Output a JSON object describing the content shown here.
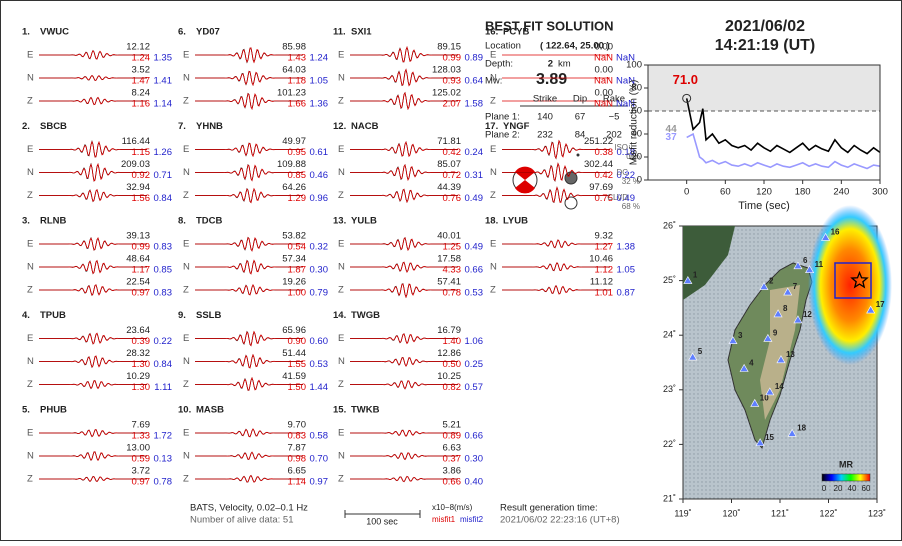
{
  "stations": [
    {
      "label": "1.",
      "name": "VWUC",
      "rows": [
        {
          "comp": "E",
          "amp": "12.12",
          "m1": "1.24",
          "m2": "1.35"
        },
        {
          "comp": "N",
          "amp": "3.52",
          "m1": "1.47",
          "m2": "1.41"
        },
        {
          "comp": "Z",
          "amp": "8.24",
          "m1": "1.16",
          "m2": "1.14"
        }
      ]
    },
    {
      "label": "2.",
      "name": "SBCB",
      "rows": [
        {
          "comp": "E",
          "amp": "116.44",
          "m1": "1.15",
          "m2": "1.26"
        },
        {
          "comp": "N",
          "amp": "209.03",
          "m1": "0.92",
          "m2": "0.71"
        },
        {
          "comp": "Z",
          "amp": "32.94",
          "m1": "1.56",
          "m2": "0.84"
        }
      ]
    },
    {
      "label": "3.",
      "name": "RLNB",
      "rows": [
        {
          "comp": "E",
          "amp": "39.13",
          "m1": "0.99",
          "m2": "0.83"
        },
        {
          "comp": "N",
          "amp": "48.64",
          "m1": "1.17",
          "m2": "0.85"
        },
        {
          "comp": "Z",
          "amp": "22.54",
          "m1": "0.97",
          "m2": "0.83"
        }
      ]
    },
    {
      "label": "4.",
      "name": "TPUB",
      "rows": [
        {
          "comp": "E",
          "amp": "23.64",
          "m1": "0.39",
          "m2": "0.22"
        },
        {
          "comp": "N",
          "amp": "28.32",
          "m1": "1.30",
          "m2": "0.84"
        },
        {
          "comp": "Z",
          "amp": "10.29",
          "m1": "1.30",
          "m2": "1.11"
        }
      ]
    },
    {
      "label": "5.",
      "name": "PHUB",
      "rows": [
        {
          "comp": "E",
          "amp": "7.69",
          "m1": "1.33",
          "m2": "1.72"
        },
        {
          "comp": "N",
          "amp": "13.00",
          "m1": "0.59",
          "m2": "0.13"
        },
        {
          "comp": "Z",
          "amp": "3.72",
          "m1": "0.97",
          "m2": "0.78"
        }
      ]
    },
    {
      "label": "6.",
      "name": "YD07",
      "rows": [
        {
          "comp": "E",
          "amp": "85.98",
          "m1": "1.43",
          "m2": "1.24"
        },
        {
          "comp": "N",
          "amp": "64.03",
          "m1": "1.18",
          "m2": "1.05"
        },
        {
          "comp": "Z",
          "amp": "101.23",
          "m1": "1.66",
          "m2": "1.36"
        }
      ]
    },
    {
      "label": "7.",
      "name": "YHNB",
      "rows": [
        {
          "comp": "E",
          "amp": "49.97",
          "m1": "0.95",
          "m2": "0.61"
        },
        {
          "comp": "N",
          "amp": "109.88",
          "m1": "0.85",
          "m2": "0.46"
        },
        {
          "comp": "Z",
          "amp": "64.26",
          "m1": "1.29",
          "m2": "0.96"
        }
      ]
    },
    {
      "label": "8.",
      "name": "TDCB",
      "rows": [
        {
          "comp": "E",
          "amp": "53.82",
          "m1": "0.54",
          "m2": "0.32"
        },
        {
          "comp": "N",
          "amp": "57.34",
          "m1": "1.87",
          "m2": "0.30"
        },
        {
          "comp": "Z",
          "amp": "19.26",
          "m1": "1.00",
          "m2": "0.79"
        }
      ]
    },
    {
      "label": "9.",
      "name": "SSLB",
      "rows": [
        {
          "comp": "E",
          "amp": "65.96",
          "m1": "0.90",
          "m2": "0.60"
        },
        {
          "comp": "N",
          "amp": "51.44",
          "m1": "1.55",
          "m2": "0.53"
        },
        {
          "comp": "Z",
          "amp": "41.59",
          "m1": "1.50",
          "m2": "1.44"
        }
      ]
    },
    {
      "label": "10.",
      "name": "MASB",
      "rows": [
        {
          "comp": "E",
          "amp": "9.70",
          "m1": "0.83",
          "m2": "0.58"
        },
        {
          "comp": "N",
          "amp": "7.87",
          "m1": "0.98",
          "m2": "0.70"
        },
        {
          "comp": "Z",
          "amp": "6.65",
          "m1": "1.14",
          "m2": "0.97"
        }
      ]
    },
    {
      "label": "11.",
      "name": "SXI1",
      "rows": [
        {
          "comp": "E",
          "amp": "89.15",
          "m1": "0.99",
          "m2": "0.89"
        },
        {
          "comp": "N",
          "amp": "128.03",
          "m1": "0.93",
          "m2": "0.64"
        },
        {
          "comp": "Z",
          "amp": "125.02",
          "m1": "2.07",
          "m2": "1.58"
        }
      ]
    },
    {
      "label": "12.",
      "name": "NACB",
      "rows": [
        {
          "comp": "E",
          "amp": "71.81",
          "m1": "0.42",
          "m2": "0.24"
        },
        {
          "comp": "N",
          "amp": "85.07",
          "m1": "0.72",
          "m2": "0.31"
        },
        {
          "comp": "Z",
          "amp": "44.39",
          "m1": "0.76",
          "m2": "0.49"
        }
      ]
    },
    {
      "label": "13.",
      "name": "YULB",
      "rows": [
        {
          "comp": "E",
          "amp": "40.01",
          "m1": "1.25",
          "m2": "0.49"
        },
        {
          "comp": "N",
          "amp": "17.58",
          "m1": "4.33",
          "m2": "0.66"
        },
        {
          "comp": "Z",
          "amp": "57.41",
          "m1": "0.78",
          "m2": "0.53"
        }
      ]
    },
    {
      "label": "14.",
      "name": "TWGB",
      "rows": [
        {
          "comp": "E",
          "amp": "16.79",
          "m1": "1.40",
          "m2": "1.06"
        },
        {
          "comp": "N",
          "amp": "12.86",
          "m1": "0.50",
          "m2": "0.25"
        },
        {
          "comp": "Z",
          "amp": "10.25",
          "m1": "0.82",
          "m2": "0.57"
        }
      ]
    },
    {
      "label": "15.",
      "name": "TWKB",
      "rows": [
        {
          "comp": "E",
          "amp": "5.21",
          "m1": "0.89",
          "m2": "0.66"
        },
        {
          "comp": "N",
          "amp": "6.63",
          "m1": "0.37",
          "m2": "0.30"
        },
        {
          "comp": "Z",
          "amp": "3.86",
          "m1": "0.66",
          "m2": "0.40"
        }
      ]
    },
    {
      "label": "16.",
      "name": "PCYB",
      "rows": [
        {
          "comp": "E",
          "amp": "0.00",
          "m1": "NaN",
          "m2": "NaN"
        },
        {
          "comp": "N",
          "amp": "0.00",
          "m1": "NaN",
          "m2": "NaN"
        },
        {
          "comp": "Z",
          "amp": "0.00",
          "m1": "NaN",
          "m2": "NaN"
        }
      ]
    },
    {
      "label": "17.",
      "name": "YNGF",
      "rows": [
        {
          "comp": "E",
          "amp": "251.22",
          "m1": "0.38",
          "m2": "0.18"
        },
        {
          "comp": "N",
          "amp": "302.44",
          "m1": "0.42",
          "m2": "0.22"
        },
        {
          "comp": "Z",
          "amp": "97.69",
          "m1": "0.75",
          "m2": "0.49"
        }
      ]
    },
    {
      "label": "18.",
      "name": "LYUB",
      "rows": [
        {
          "comp": "E",
          "amp": "9.32",
          "m1": "1.27",
          "m2": "1.38"
        },
        {
          "comp": "N",
          "amp": "10.46",
          "m1": "1.12",
          "m2": "1.05"
        },
        {
          "comp": "Z",
          "amp": "11.12",
          "m1": "1.01",
          "m2": "0.87"
        }
      ]
    }
  ],
  "solution": {
    "title": "BEST FIT SOLUTION",
    "location_label": "Location",
    "location": "( 122.64, 25.00 )",
    "depth_label": "Depth:",
    "depth": "2",
    "depth_unit": "km",
    "mw_label": "Mw:",
    "mw": "3.89",
    "table": {
      "header": [
        "Strike",
        "Dip",
        "Rake"
      ],
      "rows": [
        [
          "Plane 1:",
          "140",
          "67",
          "−5"
        ],
        [
          "Plane 2:",
          "232",
          "84",
          "202"
        ]
      ]
    },
    "components": [
      {
        "name": "ISO",
        "value": "0 %"
      },
      {
        "name": "DC",
        "value": "32 %"
      },
      {
        "name": "CLVD",
        "value": "68 %"
      }
    ]
  },
  "header": {
    "date": "2021/06/02",
    "time": "14:21:19  (UT)"
  },
  "footer": {
    "source": "BATS, Velocity, 0.02–0.1 Hz",
    "alive": "Number of alive data: 51",
    "unit": "x10−8(m/s)",
    "scale": "100 sec",
    "misfit1": "misfit1",
    "misfit2": "misfit2",
    "result_label": "Result generation time:",
    "result_time": "2021/06/02 22:23:16 (UT+8)"
  },
  "chart_data": {
    "type": "line",
    "ylabel": "Misfit reduction (%)",
    "xlabel": "Time (sec)",
    "xlim": [
      -60,
      300
    ],
    "ylim": [
      0,
      100
    ],
    "xticks": [
      0,
      60,
      120,
      180,
      240,
      300
    ],
    "yticks": [
      0,
      20,
      40,
      60,
      80,
      100
    ],
    "threshold": 60,
    "x": [
      0,
      10,
      20,
      25,
      30,
      40,
      50,
      60,
      70,
      80,
      90,
      100,
      110,
      120,
      130,
      140,
      150,
      160,
      170,
      180,
      190,
      200,
      210,
      220,
      230,
      240,
      250,
      260,
      270,
      280,
      290,
      300
    ],
    "series": [
      {
        "color": "#000000",
        "values": [
          71,
          44,
          50,
          62,
          35,
          40,
          32,
          35,
          30,
          28,
          30,
          26,
          32,
          28,
          25,
          30,
          27,
          24,
          28,
          32,
          26,
          30,
          27,
          25,
          35,
          28,
          24,
          30,
          26,
          23,
          28,
          24
        ]
      },
      {
        "color": "#9999ff",
        "values": [
          37,
          40,
          20,
          18,
          15,
          17,
          14,
          16,
          13,
          12,
          14,
          12,
          15,
          13,
          11,
          14,
          12,
          11,
          13,
          15,
          12,
          14,
          12,
          11,
          16,
          13,
          11,
          14,
          12,
          10,
          13,
          12
        ]
      }
    ],
    "annotations": [
      {
        "text": "71.0",
        "color": "#dd0000"
      },
      {
        "text": "44",
        "color": "#999999"
      },
      {
        "text": "37",
        "color": "#9999ff"
      }
    ]
  },
  "map": {
    "xlim": [
      119,
      123
    ],
    "ylim": [
      21,
      26
    ],
    "xticks": [
      {
        "value": 119,
        "label": "119˚"
      },
      {
        "value": 120,
        "label": "120˚"
      },
      {
        "value": 121,
        "label": "121˚"
      },
      {
        "value": 122,
        "label": "122˚"
      },
      {
        "value": 123,
        "label": "123˚"
      }
    ],
    "yticks": [
      {
        "value": 21,
        "label": "21˚"
      },
      {
        "value": 22,
        "label": "22˚"
      },
      {
        "value": 23,
        "label": "23˚"
      },
      {
        "value": 24,
        "label": "24˚"
      },
      {
        "value": 25,
        "label": "25˚"
      },
      {
        "value": 26,
        "label": "26˚"
      }
    ],
    "epicenter": {
      "lon": 122.64,
      "lat": 25.0
    },
    "stations": [
      {
        "label": "1",
        "lon": 119.1,
        "lat": 25.0
      },
      {
        "label": "2",
        "lon": 120.67,
        "lat": 24.89
      },
      {
        "label": "3",
        "lon": 120.03,
        "lat": 23.9
      },
      {
        "label": "4",
        "lon": 120.26,
        "lat": 23.39
      },
      {
        "label": "5",
        "lon": 119.2,
        "lat": 23.6
      },
      {
        "label": "6",
        "lon": 121.37,
        "lat": 25.27
      },
      {
        "label": "7",
        "lon": 121.16,
        "lat": 24.79
      },
      {
        "label": "8",
        "lon": 120.96,
        "lat": 24.39
      },
      {
        "label": "9",
        "lon": 120.75,
        "lat": 23.94
      },
      {
        "label": "10",
        "lon": 120.48,
        "lat": 22.75
      },
      {
        "label": "11",
        "lon": 121.61,
        "lat": 25.2
      },
      {
        "label": "12",
        "lon": 121.37,
        "lat": 24.28
      },
      {
        "label": "13",
        "lon": 121.02,
        "lat": 23.55
      },
      {
        "label": "14",
        "lon": 120.79,
        "lat": 22.96
      },
      {
        "label": "15",
        "lon": 120.59,
        "lat": 22.03
      },
      {
        "label": "16",
        "lon": 121.94,
        "lat": 25.79
      },
      {
        "label": "17",
        "lon": 122.87,
        "lat": 24.46
      },
      {
        "label": "18",
        "lon": 121.25,
        "lat": 22.2
      }
    ],
    "colorbar": {
      "title": "MR",
      "ticks": [
        0,
        20,
        40,
        60
      ]
    }
  }
}
